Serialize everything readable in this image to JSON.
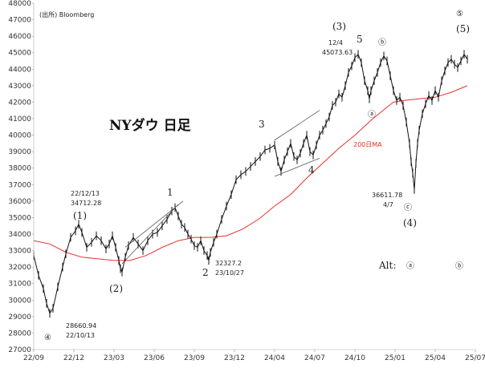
{
  "chart_data": {
    "type": "line",
    "title": "NYダウ 日足",
    "source": "(出所) Bloomberg",
    "yticks": [
      27000,
      28000,
      29000,
      30000,
      31000,
      32000,
      33000,
      34000,
      35000,
      36000,
      37000,
      38000,
      39000,
      40000,
      41000,
      42000,
      43000,
      44000,
      45000,
      46000,
      47000,
      48000
    ],
    "ylim": [
      27000,
      48000
    ],
    "xticks": [
      "22/09",
      "22/12",
      "23/03",
      "23/06",
      "23/09",
      "23/12",
      "24/04",
      "24/07",
      "24/10",
      "25/01",
      "25/04",
      "25/07"
    ],
    "grid": false,
    "series": [
      {
        "name": "NYダウ",
        "values": [
          [
            0,
            32700
          ],
          [
            3,
            31500
          ],
          [
            6,
            30700
          ],
          [
            8,
            29800
          ],
          [
            10,
            29200
          ],
          [
            12,
            29500
          ],
          [
            15,
            30800
          ],
          [
            18,
            32000
          ],
          [
            20,
            32800
          ],
          [
            23,
            33800
          ],
          [
            26,
            34200
          ],
          [
            28,
            34600
          ],
          [
            30,
            34100
          ],
          [
            33,
            33200
          ],
          [
            36,
            33500
          ],
          [
            39,
            33900
          ],
          [
            42,
            33600
          ],
          [
            45,
            33100
          ],
          [
            47,
            33400
          ],
          [
            49,
            33900
          ],
          [
            51,
            33200
          ],
          [
            53,
            32400
          ],
          [
            54,
            31900
          ],
          [
            55,
            31700
          ],
          [
            57,
            32600
          ],
          [
            59,
            33300
          ],
          [
            62,
            33800
          ],
          [
            65,
            33400
          ],
          [
            68,
            33000
          ],
          [
            71,
            33600
          ],
          [
            74,
            34000
          ],
          [
            77,
            34100
          ],
          [
            80,
            34500
          ],
          [
            83,
            34900
          ],
          [
            86,
            35400
          ],
          [
            88,
            35600
          ],
          [
            90,
            35100
          ],
          [
            92,
            34600
          ],
          [
            94,
            34400
          ],
          [
            96,
            34000
          ],
          [
            98,
            33700
          ],
          [
            100,
            33300
          ],
          [
            102,
            33200
          ],
          [
            104,
            33600
          ],
          [
            106,
            33000
          ],
          [
            108,
            32700
          ],
          [
            109,
            32400
          ],
          [
            110,
            32900
          ],
          [
            112,
            33500
          ],
          [
            114,
            34000
          ],
          [
            117,
            34900
          ],
          [
            120,
            35700
          ],
          [
            123,
            36400
          ],
          [
            126,
            37300
          ],
          [
            129,
            37600
          ],
          [
            132,
            37800
          ],
          [
            135,
            38100
          ],
          [
            138,
            38400
          ],
          [
            141,
            38700
          ],
          [
            144,
            39100
          ],
          [
            147,
            39200
          ],
          [
            150,
            39400
          ],
          [
            152,
            38400
          ],
          [
            154,
            37800
          ],
          [
            156,
            38500
          ],
          [
            158,
            39000
          ],
          [
            160,
            39500
          ],
          [
            162,
            38700
          ],
          [
            164,
            38500
          ],
          [
            166,
            38900
          ],
          [
            168,
            39500
          ],
          [
            170,
            40000
          ],
          [
            172,
            39000
          ],
          [
            174,
            38800
          ],
          [
            176,
            39400
          ],
          [
            178,
            40000
          ],
          [
            180,
            40300
          ],
          [
            182,
            40700
          ],
          [
            184,
            41100
          ],
          [
            186,
            41800
          ],
          [
            188,
            42000
          ],
          [
            190,
            42500
          ],
          [
            192,
            42300
          ],
          [
            194,
            43000
          ],
          [
            196,
            43800
          ],
          [
            198,
            44200
          ],
          [
            200,
            44700
          ],
          [
            202,
            44900
          ],
          [
            204,
            44400
          ],
          [
            206,
            43300
          ],
          [
            208,
            42700
          ],
          [
            209,
            42200
          ],
          [
            210,
            42700
          ],
          [
            212,
            43300
          ],
          [
            214,
            43800
          ],
          [
            216,
            44400
          ],
          [
            218,
            44800
          ],
          [
            220,
            44500
          ],
          [
            222,
            43600
          ],
          [
            224,
            42700
          ],
          [
            226,
            42100
          ],
          [
            228,
            42300
          ],
          [
            230,
            41800
          ],
          [
            232,
            40800
          ],
          [
            234,
            39500
          ],
          [
            235,
            38400
          ],
          [
            236,
            37700
          ],
          [
            237,
            36700
          ],
          [
            238,
            38300
          ],
          [
            239,
            39500
          ],
          [
            240,
            40300
          ],
          [
            242,
            41300
          ],
          [
            244,
            41900
          ],
          [
            246,
            42400
          ],
          [
            248,
            42100
          ],
          [
            250,
            42700
          ],
          [
            252,
            42300
          ],
          [
            254,
            43300
          ],
          [
            256,
            43900
          ],
          [
            258,
            44400
          ],
          [
            260,
            44600
          ],
          [
            262,
            44300
          ],
          [
            264,
            44100
          ],
          [
            266,
            44500
          ],
          [
            268,
            44900
          ],
          [
            270,
            44600
          ]
        ]
      },
      {
        "name": "200日MA",
        "values": [
          [
            0,
            33600
          ],
          [
            10,
            33400
          ],
          [
            20,
            32900
          ],
          [
            30,
            32600
          ],
          [
            40,
            32500
          ],
          [
            50,
            32400
          ],
          [
            60,
            32400
          ],
          [
            70,
            32700
          ],
          [
            80,
            33200
          ],
          [
            90,
            33600
          ],
          [
            100,
            33800
          ],
          [
            110,
            33800
          ],
          [
            120,
            33900
          ],
          [
            130,
            34300
          ],
          [
            140,
            34900
          ],
          [
            150,
            35700
          ],
          [
            160,
            36400
          ],
          [
            170,
            37400
          ],
          [
            180,
            38300
          ],
          [
            190,
            39200
          ],
          [
            200,
            40000
          ],
          [
            210,
            40900
          ],
          [
            220,
            41700
          ],
          [
            224,
            42000
          ],
          [
            230,
            42100
          ],
          [
            240,
            42200
          ],
          [
            250,
            42300
          ],
          [
            260,
            42600
          ],
          [
            270,
            43000
          ]
        ]
      }
    ],
    "ma_label": "200日MA",
    "colors": {
      "price": "#111111",
      "ma": "#e8302c",
      "trendline": "#555555"
    },
    "annotations": {
      "wave_main_4": "④",
      "low_2022": [
        "28660.94",
        "22/10/13"
      ],
      "wave_1_paren": "(1)",
      "peak_2022": [
        "22/12/13",
        "34712.28"
      ],
      "wave_2_paren": "(2)",
      "wave_1": "1",
      "low_2023": [
        "32327.2",
        "23/10/27"
      ],
      "wave_2": "2",
      "wave_3": "3",
      "wave_4": "4",
      "wave_3_paren": "(3)",
      "high_2024": [
        "12/4",
        "45073.63"
      ],
      "wave_5": "5",
      "wave_a": "ⓐ",
      "wave_b": "ⓑ",
      "wave_c": "ⓒ",
      "low_2025": [
        "36611.78",
        "4/7"
      ],
      "wave_4_paren": "(4)",
      "wave_main_5": "⑤",
      "wave_5_paren": "(5)",
      "alt_label": "Alt:",
      "alt_a": "ⓐ",
      "alt_b": "ⓑ"
    }
  }
}
